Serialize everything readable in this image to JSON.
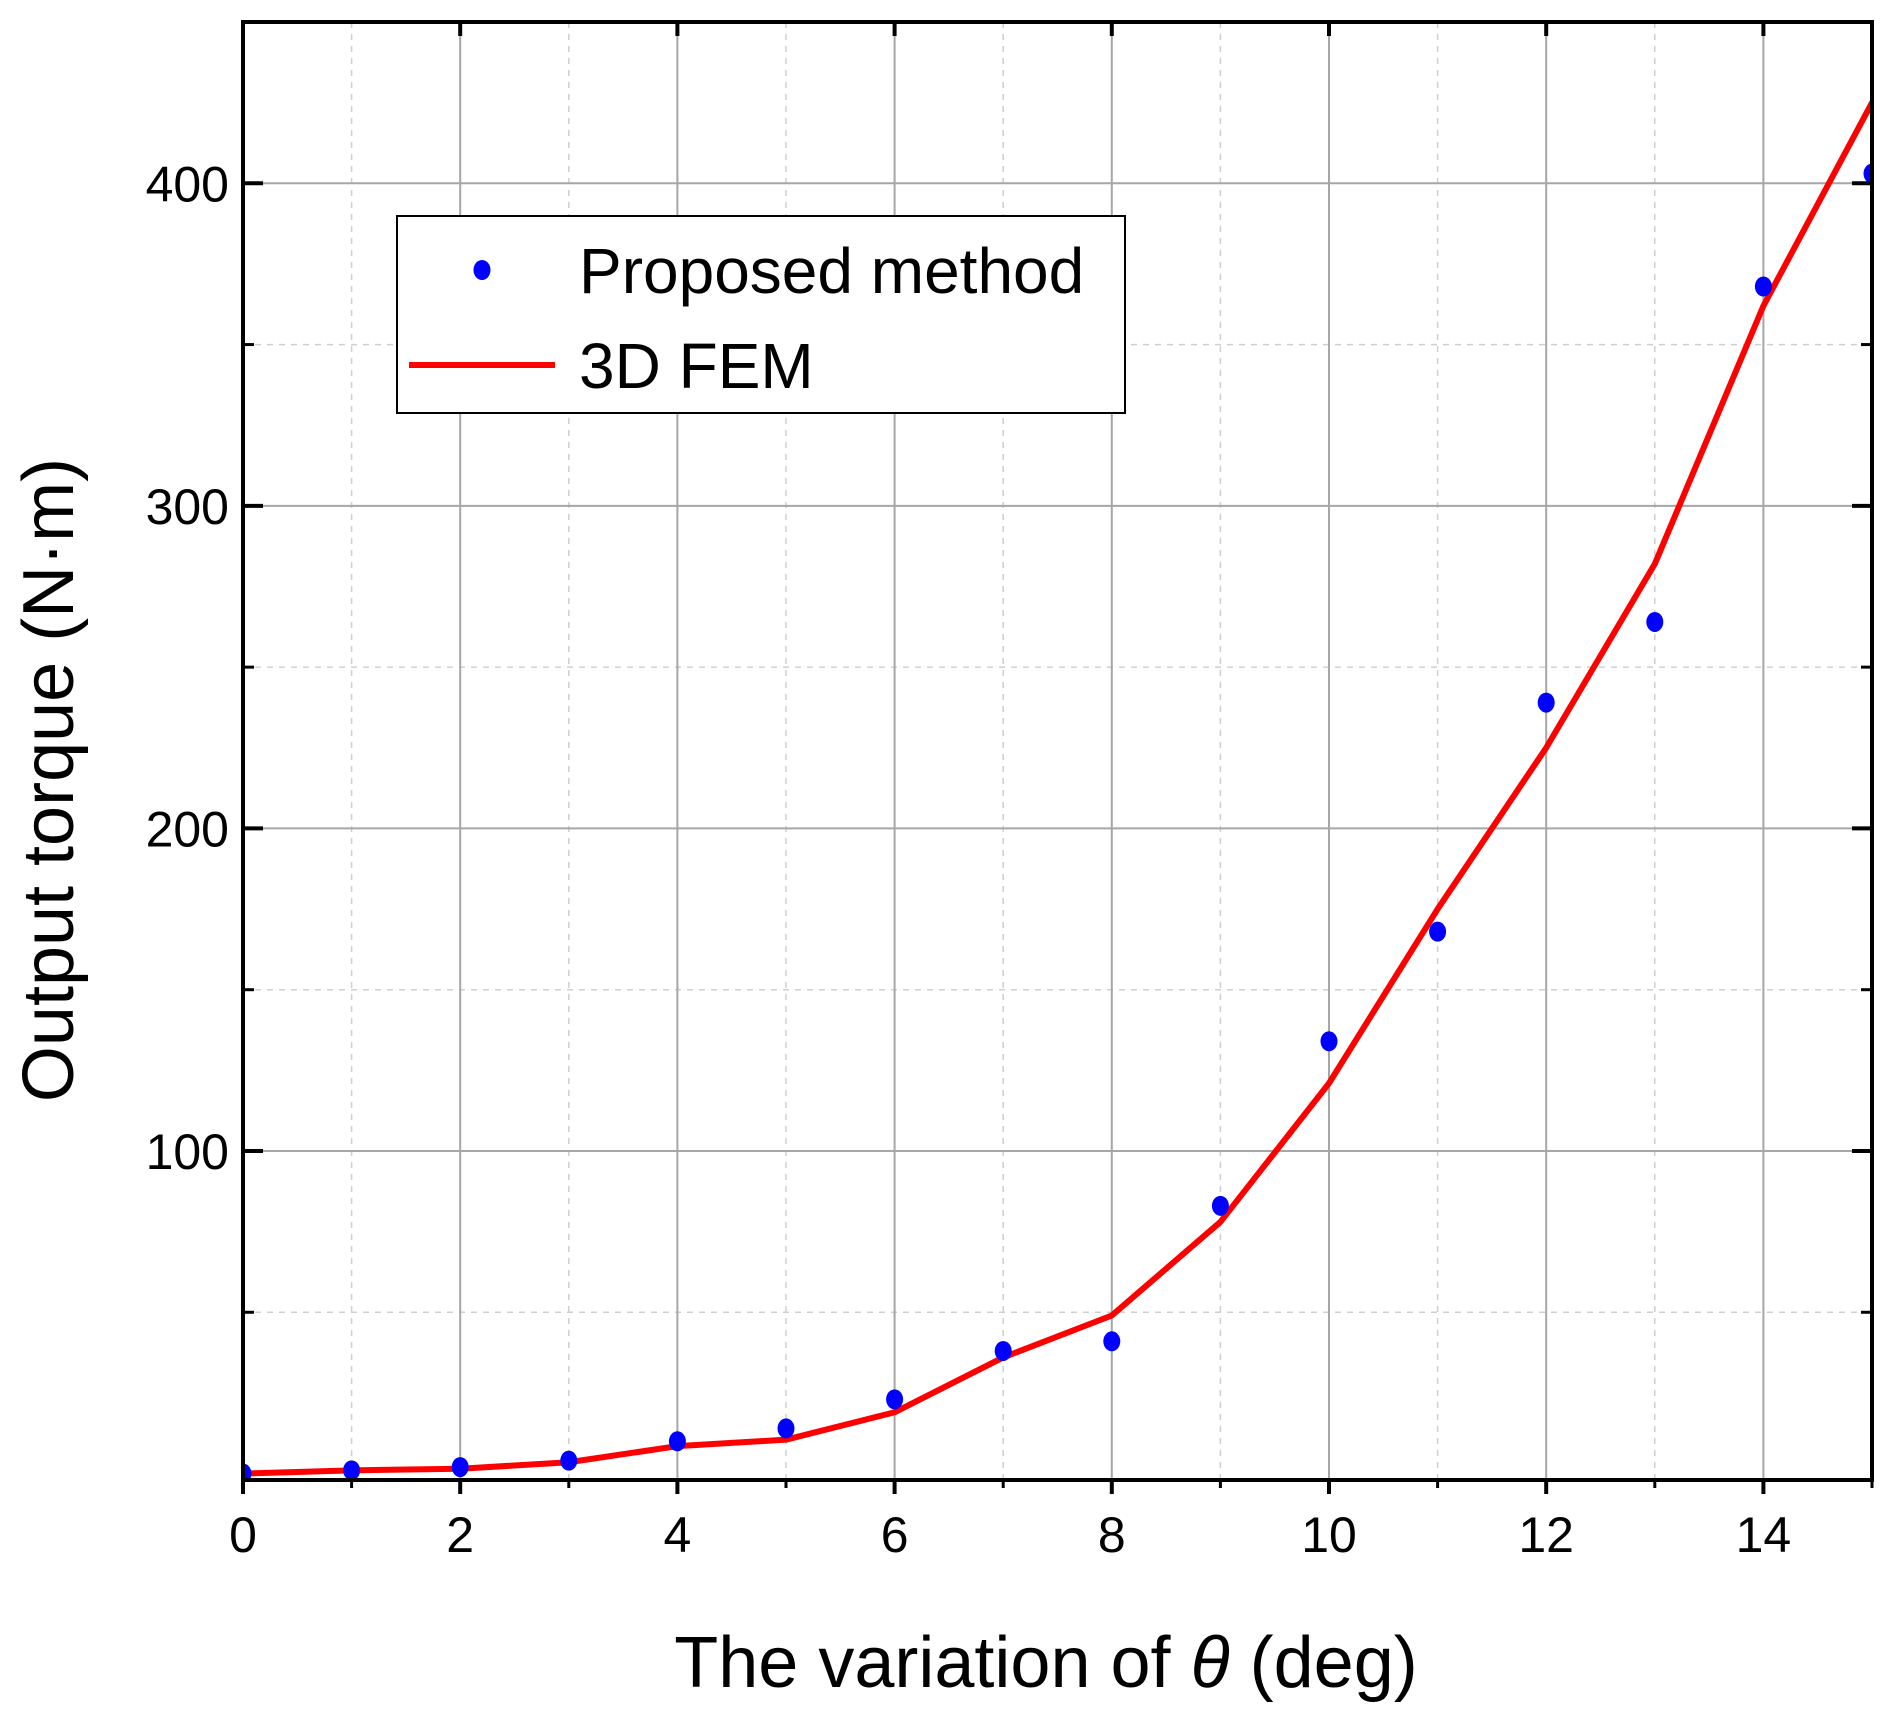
{
  "chart_data": {
    "type": "line",
    "title": "",
    "xlabel": "The variation of θ (deg)",
    "xlabel_parts": [
      "The variation of ",
      "θ",
      " (deg)"
    ],
    "ylabel": "Output torque (N·m)",
    "xlim": [
      0,
      15
    ],
    "ylim": [
      -2,
      450
    ],
    "x_ticks": [
      0,
      2,
      4,
      6,
      8,
      10,
      12,
      14
    ],
    "x_tick_labels": [
      "0",
      "2",
      "4",
      "6",
      "8",
      "10",
      "12",
      "14"
    ],
    "x_minor_ticks": [
      1,
      3,
      5,
      7,
      9,
      11,
      13,
      15
    ],
    "y_ticks": [
      100,
      200,
      300,
      400
    ],
    "y_tick_labels": [
      "100",
      "200",
      "300",
      "400"
    ],
    "y_minor_ticks": [
      50,
      150,
      250,
      350
    ],
    "grid": true,
    "legend_position": "top-left",
    "series": [
      {
        "name": "Proposed method",
        "style": "scatter",
        "color": "#0000ff",
        "x": [
          0,
          1,
          2,
          3,
          4,
          5,
          6,
          7,
          8,
          9,
          10,
          11,
          12,
          13,
          14,
          15
        ],
        "y": [
          0,
          1,
          2,
          4,
          10,
          14,
          23,
          38,
          41,
          83,
          134,
          168,
          239,
          264,
          368,
          403
        ]
      },
      {
        "name": "3D FEM",
        "style": "line",
        "color": "#ff0000",
        "x": [
          0,
          1,
          2,
          3,
          4,
          5,
          6,
          7,
          8,
          9,
          10,
          11,
          12,
          13,
          14,
          15
        ],
        "y": [
          0,
          1,
          1.5,
          3.5,
          8.5,
          10.5,
          19,
          36,
          49,
          78,
          121,
          175,
          225,
          282,
          362,
          425
        ]
      }
    ]
  }
}
